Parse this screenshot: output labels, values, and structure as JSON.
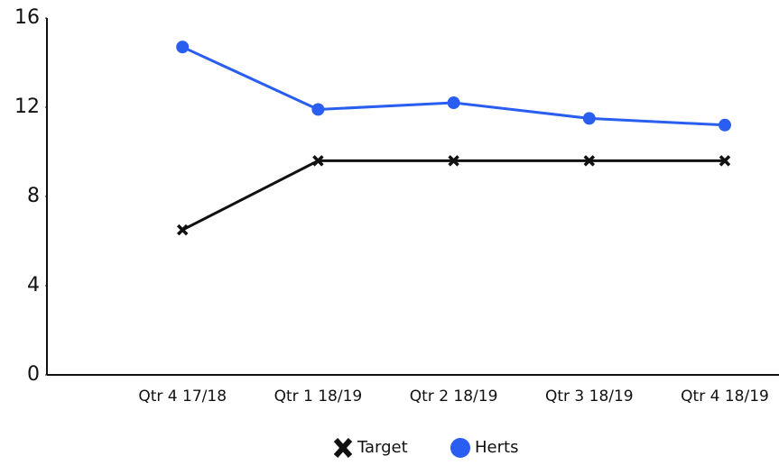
{
  "chart_data": {
    "type": "line",
    "categories": [
      "Qtr 4 17/18",
      "Qtr 1 18/19",
      "Qtr 2 18/19",
      "Qtr 3 18/19",
      "Qtr 4 18/19"
    ],
    "series": [
      {
        "name": "Target",
        "color": "#111111",
        "marker": "x",
        "values": [
          6.5,
          9.6,
          9.6,
          9.6,
          9.6
        ]
      },
      {
        "name": "Herts",
        "color": "#2a5ef0",
        "marker": "circle",
        "values": [
          14.7,
          11.9,
          12.2,
          11.5,
          11.2
        ]
      }
    ],
    "ylim": [
      0,
      16
    ],
    "yticks": [
      0,
      4,
      8,
      12,
      16
    ],
    "grid": false,
    "legend": "bottom"
  }
}
